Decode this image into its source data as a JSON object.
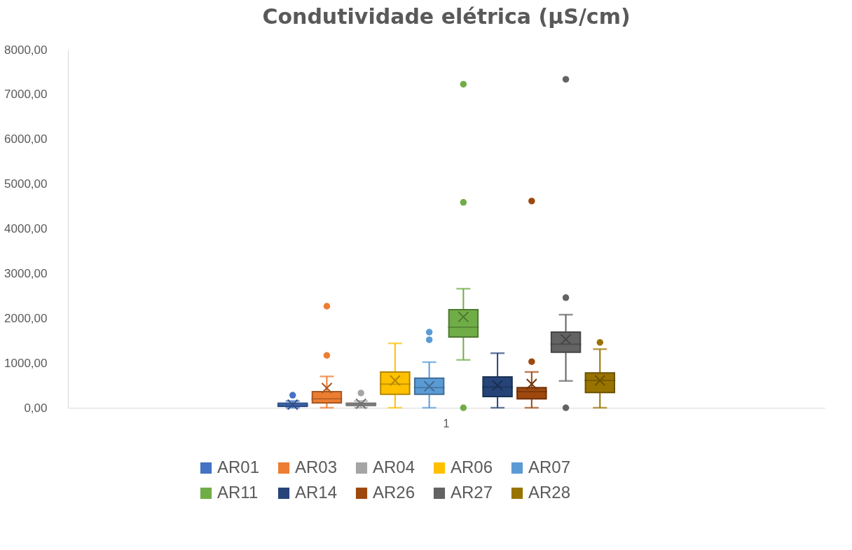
{
  "chart_data": {
    "type": "box",
    "title": "Condutividade elétrica (µS/cm)",
    "categories": [
      "1"
    ],
    "ylim": [
      0,
      8000
    ],
    "yticks": [
      {
        "value": 0,
        "label": "0,00"
      },
      {
        "value": 1000,
        "label": "1000,00"
      },
      {
        "value": 2000,
        "label": "2000,00"
      },
      {
        "value": 3000,
        "label": "3000,00"
      },
      {
        "value": 4000,
        "label": "4000,00"
      },
      {
        "value": 5000,
        "label": "5000,00"
      },
      {
        "value": 6000,
        "label": "6000,00"
      },
      {
        "value": 7000,
        "label": "7000,00"
      },
      {
        "value": 8000,
        "label": "8000,00"
      }
    ],
    "legend": "bottom",
    "series": [
      {
        "name": "AR01",
        "color": "#4472c4",
        "boxes": [
          {
            "low": 0,
            "q1": 30,
            "median": 60,
            "q3": 100,
            "high": 150,
            "mean": 70,
            "outliers": [
              280
            ]
          }
        ]
      },
      {
        "name": "AR03",
        "color": "#ed7d31",
        "boxes": [
          {
            "low": 0,
            "q1": 110,
            "median": 200,
            "q3": 360,
            "high": 700,
            "mean": 440,
            "outliers": [
              1170,
              2270
            ]
          }
        ]
      },
      {
        "name": "AR04",
        "color": "#a5a5a5",
        "boxes": [
          {
            "low": 0,
            "q1": 50,
            "median": 80,
            "q3": 100,
            "high": 150,
            "mean": 90,
            "outliers": [
              330
            ]
          }
        ]
      },
      {
        "name": "AR06",
        "color": "#ffc000",
        "boxes": [
          {
            "low": 0,
            "q1": 300,
            "median": 530,
            "q3": 800,
            "high": 1440,
            "mean": 610
          }
        ]
      },
      {
        "name": "AR07",
        "color": "#5b9bd5",
        "boxes": [
          {
            "low": 0,
            "q1": 300,
            "median": 450,
            "q3": 660,
            "high": 1020,
            "mean": 480,
            "outliers": [
              1520,
              1690
            ]
          }
        ]
      },
      {
        "name": "AR11",
        "color": "#70ad47",
        "boxes": [
          {
            "low": 1070,
            "q1": 1580,
            "median": 1800,
            "q3": 2190,
            "high": 2660,
            "mean": 2030,
            "outliers": [
              0,
              4590,
              7230
            ]
          }
        ]
      },
      {
        "name": "AR14",
        "color": "#264478",
        "boxes": [
          {
            "low": 0,
            "q1": 250,
            "median": 460,
            "q3": 690,
            "high": 1220,
            "mean": 500
          }
        ]
      },
      {
        "name": "AR26",
        "color": "#9e480e",
        "boxes": [
          {
            "low": 0,
            "q1": 200,
            "median": 360,
            "q3": 450,
            "high": 800,
            "mean": 530,
            "outliers": [
              1030,
              4620
            ]
          }
        ]
      },
      {
        "name": "AR27",
        "color": "#636363",
        "boxes": [
          {
            "low": 600,
            "q1": 1240,
            "median": 1420,
            "q3": 1690,
            "high": 2080,
            "mean": 1530,
            "outliers": [
              0,
              2460,
              7340
            ]
          }
        ]
      },
      {
        "name": "AR28",
        "color": "#997300",
        "boxes": [
          {
            "low": 0,
            "q1": 340,
            "median": 610,
            "q3": 780,
            "high": 1310,
            "mean": 610,
            "outliers": [
              1460
            ]
          }
        ]
      }
    ]
  }
}
